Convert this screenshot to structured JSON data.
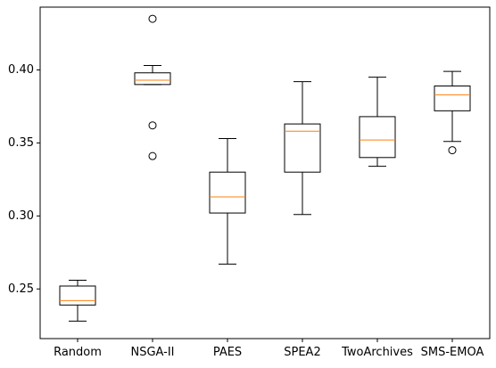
{
  "chart_data": {
    "type": "boxplot",
    "title": "",
    "xlabel": "",
    "ylabel": "",
    "ylim": [
      0.216,
      0.443
    ],
    "yticks": [
      "0.25",
      "0.30",
      "0.35",
      "0.40"
    ],
    "grid": false,
    "legend": "none",
    "colors": {
      "box": "#000000",
      "median": "#ff7f0e",
      "flier": "#000000"
    },
    "categories": [
      "Random",
      "NSGA-II",
      "PAES",
      "SPEA2",
      "TwoArchives",
      "SMS-EMOA"
    ],
    "boxes": [
      {
        "whisker_low": 0.228,
        "q1": 0.239,
        "median": 0.242,
        "q3": 0.252,
        "whisker_high": 0.256,
        "fliers": []
      },
      {
        "whisker_low": 0.39,
        "q1": 0.39,
        "median": 0.393,
        "q3": 0.398,
        "whisker_high": 0.403,
        "fliers": [
          0.435,
          0.362,
          0.341
        ]
      },
      {
        "whisker_low": 0.267,
        "q1": 0.302,
        "median": 0.313,
        "q3": 0.33,
        "whisker_high": 0.353,
        "fliers": []
      },
      {
        "whisker_low": 0.301,
        "q1": 0.33,
        "median": 0.358,
        "q3": 0.363,
        "whisker_high": 0.392,
        "fliers": []
      },
      {
        "whisker_low": 0.334,
        "q1": 0.34,
        "median": 0.352,
        "q3": 0.368,
        "whisker_high": 0.395,
        "fliers": []
      },
      {
        "whisker_low": 0.351,
        "q1": 0.372,
        "median": 0.383,
        "q3": 0.389,
        "whisker_high": 0.399,
        "fliers": [
          0.345
        ]
      }
    ]
  }
}
